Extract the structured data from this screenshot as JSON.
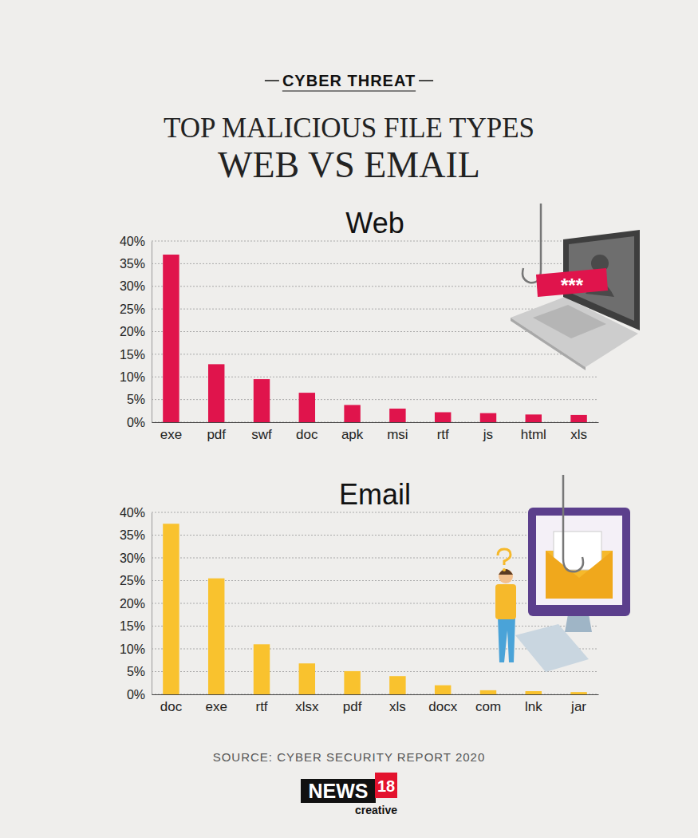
{
  "header": {
    "kicker": "CYBER THREAT",
    "title": "TOP MALICIOUS FILE TYPES",
    "subtitle": "WEB VS EMAIL"
  },
  "chart_data": [
    {
      "type": "bar",
      "title": "Web",
      "categories": [
        "exe",
        "pdf",
        "swf",
        "doc",
        "apk",
        "msi",
        "rtf",
        "js",
        "html",
        "xls"
      ],
      "values": [
        37,
        12.8,
        9.5,
        6.5,
        3.8,
        3.0,
        2.2,
        2.0,
        1.7,
        1.6
      ],
      "color": "#e0144c",
      "ylim": [
        0,
        40
      ],
      "yticks": [
        {
          "value": 0,
          "label": "0%"
        },
        {
          "value": 5,
          "label": "5%"
        },
        {
          "value": 10,
          "label": "10%"
        },
        {
          "value": 15,
          "label": "15%"
        },
        {
          "value": 20,
          "label": "20%"
        },
        {
          "value": 25,
          "label": "25%"
        },
        {
          "value": 30,
          "label": "30%"
        },
        {
          "value": 35,
          "label": "35%"
        },
        {
          "value": 40,
          "label": "40%"
        }
      ],
      "grid": true
    },
    {
      "type": "bar",
      "title": "Email",
      "categories": [
        "doc",
        "exe",
        "rtf",
        "xlsx",
        "pdf",
        "xls",
        "docx",
        "com",
        "lnk",
        "jar"
      ],
      "values": [
        37.5,
        25.5,
        11,
        6.8,
        5.1,
        4.0,
        2.0,
        0.9,
        0.7,
        0.5
      ],
      "color": "#f9c22e",
      "ylim": [
        0,
        40
      ],
      "yticks": [
        {
          "value": 0,
          "label": "0%"
        },
        {
          "value": 5,
          "label": "5%"
        },
        {
          "value": 10,
          "label": "10%"
        },
        {
          "value": 15,
          "label": "15%"
        },
        {
          "value": 20,
          "label": "20%"
        },
        {
          "value": 25,
          "label": "25%"
        },
        {
          "value": 30,
          "label": "30%"
        },
        {
          "value": 35,
          "label": "35%"
        },
        {
          "value": 40,
          "label": "40%"
        }
      ],
      "grid": true
    }
  ],
  "illustration": {
    "password_tag": "***"
  },
  "footer": {
    "source": "SOURCE: CYBER SECURITY REPORT 2020",
    "logo_main": "NEWS",
    "logo_number": "18",
    "logo_sub": "creative"
  }
}
